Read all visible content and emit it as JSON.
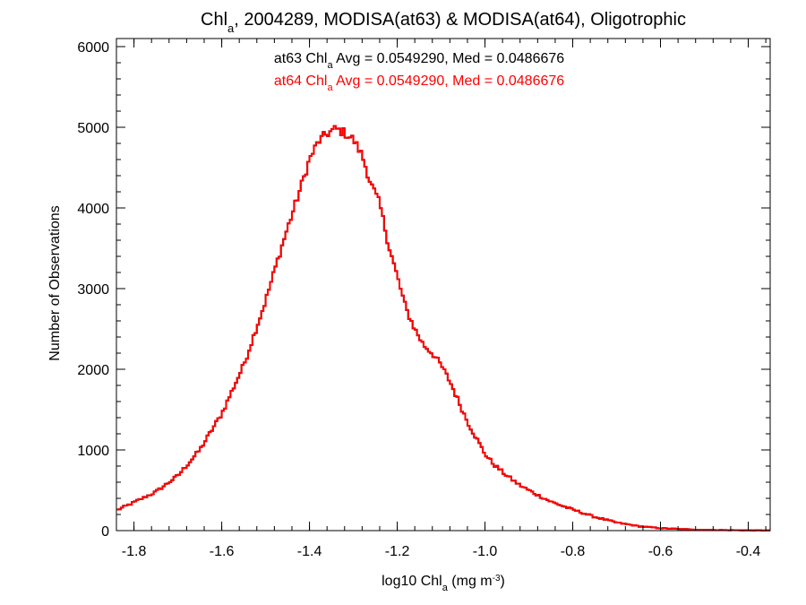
{
  "chart_data": {
    "type": "histogram",
    "title": {
      "prefix": "Chl",
      "sub": "a",
      "suffix": ", 2004289, MODISA(at63) & MODISA(at64), Oligotrophic"
    },
    "xlabel": {
      "prefix": "log10 Chl",
      "sub": "a",
      "mid": " (mg m",
      "sup": "-3",
      "suffix": ")"
    },
    "ylabel": "Number of Observations",
    "xlim": [
      -1.84,
      -0.35
    ],
    "ylim": [
      0,
      6100
    ],
    "xticks": [
      -1.8,
      -1.6,
      -1.4,
      -1.2,
      -1.0,
      -0.8,
      -0.6,
      -0.4
    ],
    "xtick_labels": [
      "-1.8",
      "-1.6",
      "-1.4",
      "-1.2",
      "-1.0",
      "-0.8",
      "-0.6",
      "-0.4"
    ],
    "yticks": [
      0,
      1000,
      2000,
      3000,
      4000,
      5000,
      6000
    ],
    "ytick_labels": [
      "0",
      "1000",
      "2000",
      "3000",
      "4000",
      "5000",
      "6000"
    ],
    "annotations": [
      {
        "prefix": "at63 Chl",
        "sub": "a",
        "suffix": " Avg = 0.0549290, Med = 0.0486676",
        "color": "#000000"
      },
      {
        "prefix": "at64 Chl",
        "sub": "a",
        "suffix": " Avg = 0.0549290, Med = 0.0486676",
        "color": "#ff0000"
      }
    ],
    "series": [
      {
        "color": "#000000"
      },
      {
        "color": "#ff0000"
      }
    ],
    "profile": {
      "x": [
        -1.84,
        -1.8,
        -1.75,
        -1.7,
        -1.65,
        -1.6,
        -1.55,
        -1.5,
        -1.47,
        -1.45,
        -1.42,
        -1.4,
        -1.38,
        -1.36,
        -1.34,
        -1.32,
        -1.3,
        -1.28,
        -1.26,
        -1.24,
        -1.22,
        -1.2,
        -1.18,
        -1.16,
        -1.14,
        -1.12,
        -1.1,
        -1.08,
        -1.06,
        -1.04,
        -1.02,
        -1.0,
        -0.98,
        -0.95,
        -0.92,
        -0.9,
        -0.88,
        -0.85,
        -0.8,
        -0.75,
        -0.7,
        -0.65,
        -0.6,
        -0.55,
        -0.5,
        -0.45,
        -0.4,
        -0.35
      ],
      "y": [
        250,
        350,
        480,
        680,
        1000,
        1450,
        2050,
        2850,
        3400,
        3750,
        4250,
        4600,
        4820,
        4920,
        4980,
        4930,
        4850,
        4650,
        4300,
        4050,
        3550,
        3150,
        2750,
        2500,
        2300,
        2200,
        2050,
        1850,
        1600,
        1350,
        1150,
        950,
        820,
        680,
        560,
        500,
        440,
        360,
        260,
        170,
        100,
        55,
        30,
        18,
        10,
        6,
        4,
        2
      ],
      "step": 0.005,
      "jitter": 120
    }
  }
}
